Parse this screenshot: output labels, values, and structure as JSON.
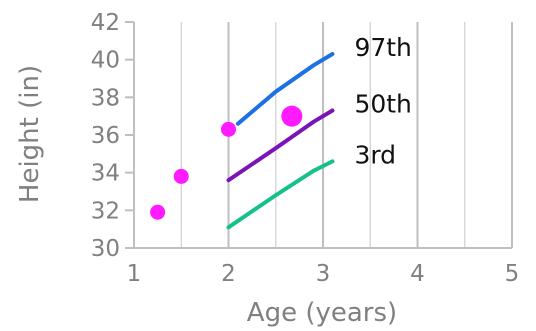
{
  "chart_data": {
    "type": "line",
    "xlabel": "Age (years)",
    "ylabel": "Height (in)",
    "xlim": [
      1,
      5
    ],
    "ylim": [
      30,
      42
    ],
    "x_ticks": [
      "1",
      "2",
      "3",
      "4",
      "5"
    ],
    "y_ticks": [
      "30",
      "32",
      "34",
      "36",
      "38",
      "40",
      "42"
    ],
    "grid": true,
    "series": [
      {
        "name": "97th",
        "color": "#1f6fe5",
        "x": [
          2.1,
          2.5,
          2.9,
          3.1
        ],
        "y": [
          36.6,
          38.3,
          39.7,
          40.3
        ]
      },
      {
        "name": "50th",
        "color": "#7a14b8",
        "x": [
          2.0,
          2.5,
          2.9,
          3.1
        ],
        "y": [
          33.6,
          35.3,
          36.7,
          37.3
        ]
      },
      {
        "name": "3rd",
        "color": "#14c18a",
        "x": [
          2.0,
          2.5,
          2.9,
          3.1
        ],
        "y": [
          31.1,
          32.8,
          34.1,
          34.6
        ]
      }
    ],
    "points": {
      "color": "#ff1aff",
      "x": [
        1.25,
        1.5,
        2.0,
        2.67
      ],
      "y": [
        31.9,
        33.8,
        36.3,
        37.0
      ],
      "size": [
        1,
        1,
        1,
        1.4
      ]
    }
  }
}
